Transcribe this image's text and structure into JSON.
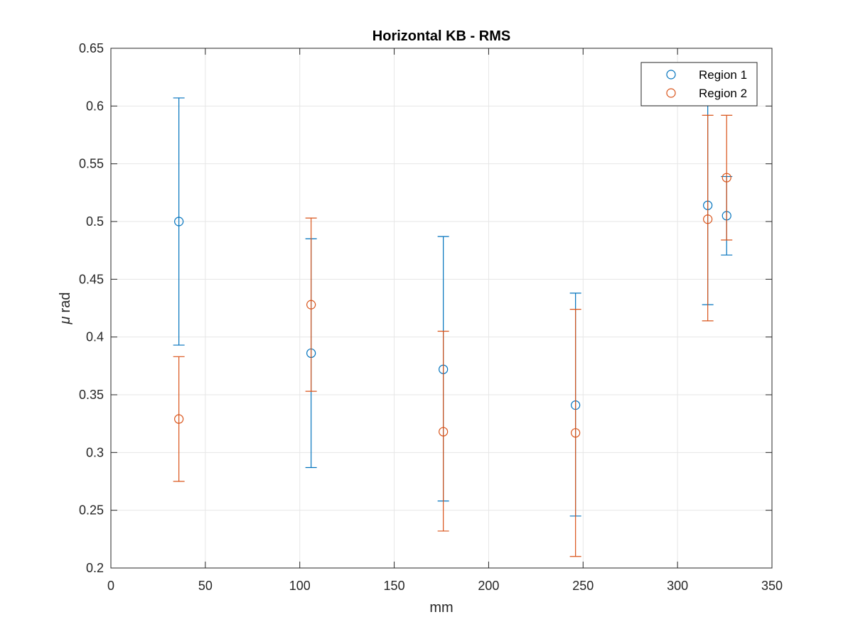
{
  "chart_data": {
    "type": "scatter",
    "title": "Horizontal KB - RMS",
    "xlabel": "mm",
    "ylabel_greek": "μ",
    "ylabel_unit": "rad",
    "xlim": [
      0,
      350
    ],
    "ylim": [
      0.2,
      0.65
    ],
    "xticks": [
      0,
      50,
      100,
      150,
      200,
      250,
      300,
      350
    ],
    "yticks": [
      0.2,
      0.25,
      0.3,
      0.35,
      0.4,
      0.45,
      0.5,
      0.55,
      0.6,
      0.65
    ],
    "xtick_labels": [
      "0",
      "50",
      "100",
      "150",
      "200",
      "250",
      "300",
      "350"
    ],
    "ytick_labels": [
      "0.2",
      "0.25",
      "0.3",
      "0.35",
      "0.4",
      "0.45",
      "0.5",
      "0.55",
      "0.6",
      "0.65"
    ],
    "grid": true,
    "legend_position": "top-right",
    "series": [
      {
        "name": "Region 1",
        "color": "#0072BD",
        "points": [
          {
            "x": 36,
            "y": 0.5,
            "ylow": 0.393,
            "yhigh": 0.607
          },
          {
            "x": 106,
            "y": 0.386,
            "ylow": 0.287,
            "yhigh": 0.485
          },
          {
            "x": 176,
            "y": 0.372,
            "ylow": 0.258,
            "yhigh": 0.487
          },
          {
            "x": 246,
            "y": 0.341,
            "ylow": 0.245,
            "yhigh": 0.438
          },
          {
            "x": 316,
            "y": 0.514,
            "ylow": 0.428,
            "yhigh": 0.601
          },
          {
            "x": 326,
            "y": 0.505,
            "ylow": 0.471,
            "yhigh": 0.539
          }
        ]
      },
      {
        "name": "Region 2",
        "color": "#D95319",
        "points": [
          {
            "x": 36,
            "y": 0.329,
            "ylow": 0.275,
            "yhigh": 0.383
          },
          {
            "x": 106,
            "y": 0.428,
            "ylow": 0.353,
            "yhigh": 0.503
          },
          {
            "x": 176,
            "y": 0.318,
            "ylow": 0.232,
            "yhigh": 0.405
          },
          {
            "x": 246,
            "y": 0.317,
            "ylow": 0.21,
            "yhigh": 0.424
          },
          {
            "x": 316,
            "y": 0.502,
            "ylow": 0.414,
            "yhigh": 0.592
          },
          {
            "x": 326,
            "y": 0.538,
            "ylow": 0.484,
            "yhigh": 0.592
          }
        ]
      }
    ]
  }
}
